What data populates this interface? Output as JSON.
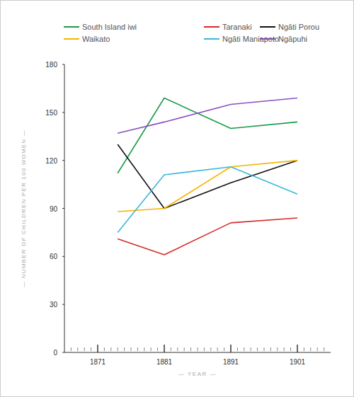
{
  "chart_data": {
    "type": "line",
    "x_label": "— YEAR —",
    "y_label": "— NUMBER OF CHILDREN PER 100 WOMEN —",
    "x": [
      1874,
      1881,
      1891,
      1901
    ],
    "xlim": [
      1866,
      1906
    ],
    "xticks": [
      1871,
      1881,
      1891,
      1901
    ],
    "ylim": [
      0,
      180
    ],
    "yticks": [
      0,
      30,
      60,
      90,
      120,
      150,
      180
    ],
    "grid": false,
    "legend": "top",
    "series": [
      {
        "name": "South Island iwi",
        "color": "#1b9b4b",
        "values": [
          112,
          159,
          140,
          144
        ]
      },
      {
        "name": "Taranaki",
        "color": "#d62b2b",
        "values": [
          71,
          61,
          81,
          84
        ]
      },
      {
        "name": "Ngāti Porou",
        "color": "#111111",
        "values": [
          130,
          90,
          106,
          120
        ]
      },
      {
        "name": "Waikato",
        "color": "#f4b400",
        "values": [
          88,
          90,
          116,
          120
        ]
      },
      {
        "name": "Ngāti Maniapoto",
        "color": "#3cb6da",
        "values": [
          75,
          111,
          116,
          99
        ]
      },
      {
        "name": "Ngāpuhi",
        "color": "#8b50c2",
        "values": [
          137,
          144,
          155,
          159
        ]
      }
    ]
  }
}
